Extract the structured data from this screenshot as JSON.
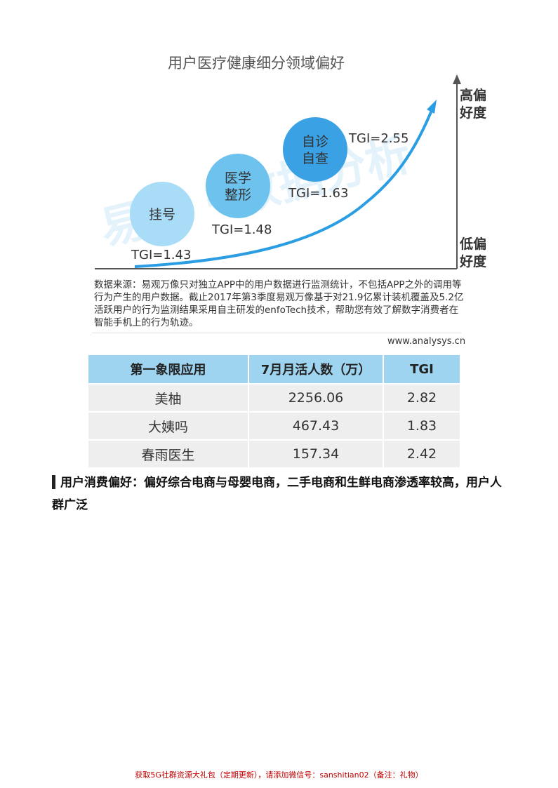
{
  "colors": {
    "curve": "#2b9de3",
    "bubble_light": "#a9dcf7",
    "bubble_mid": "#6ec2ee",
    "bubble_dark": "#3aa2e4",
    "axis": "#555555",
    "table_header": "#9fd4f0",
    "table_cell": "#eeeeee",
    "footer": "#c00000"
  },
  "chart_data": {
    "type": "bubble",
    "title": "用户医疗健康细分领域偏好",
    "ylabel_top": "高偏\n好度",
    "ylabel_bottom": "低偏\n好度",
    "points": [
      {
        "category": "挂号",
        "tgi": 1.43,
        "tgi_label": "TGI=1.43"
      },
      {
        "category": "医学\n整形",
        "tgi": 1.48,
        "tgi_label": "TGI=1.48"
      },
      {
        "category": "自诊\n自查",
        "tgi": 1.63,
        "tgi_label": "TGI=1.63"
      },
      {
        "category": "",
        "tgi": 2.55,
        "tgi_label": "TGI=2.55"
      }
    ],
    "watermark": "易观 · 数据分析"
  },
  "note": {
    "text": "数据来源：易观万像只对独立APP中的用户数据进行监测统计，不包括APP之外的调用等行为产生的用户数据。截止2017年第3季度易观万像基于对21.9亿累计装机覆盖及5.2亿活跃用户的行为监测结果采用自主研发的enfoTech技术，帮助您有效了解数字消费者在智能手机上的行为轨迹。",
    "site": "www.analysys.cn"
  },
  "table": {
    "headers": [
      "第一象限应用",
      "7月月活人数（万）",
      "TGI"
    ],
    "rows": [
      [
        "美柚",
        "2256.06",
        "2.82"
      ],
      [
        "大姨吗",
        "467.43",
        "1.83"
      ],
      [
        "春雨医生",
        "157.34",
        "2.42"
      ]
    ]
  },
  "section": {
    "heading": "用户消费偏好：偏好综合电商与母婴电商，二手电商和生鲜电商渗透率较高，用户人群广泛"
  },
  "footer": {
    "text": "获取5G社群资源大礼包（定期更新），请添加微信号：sanshitian02（备注：礼物）"
  }
}
